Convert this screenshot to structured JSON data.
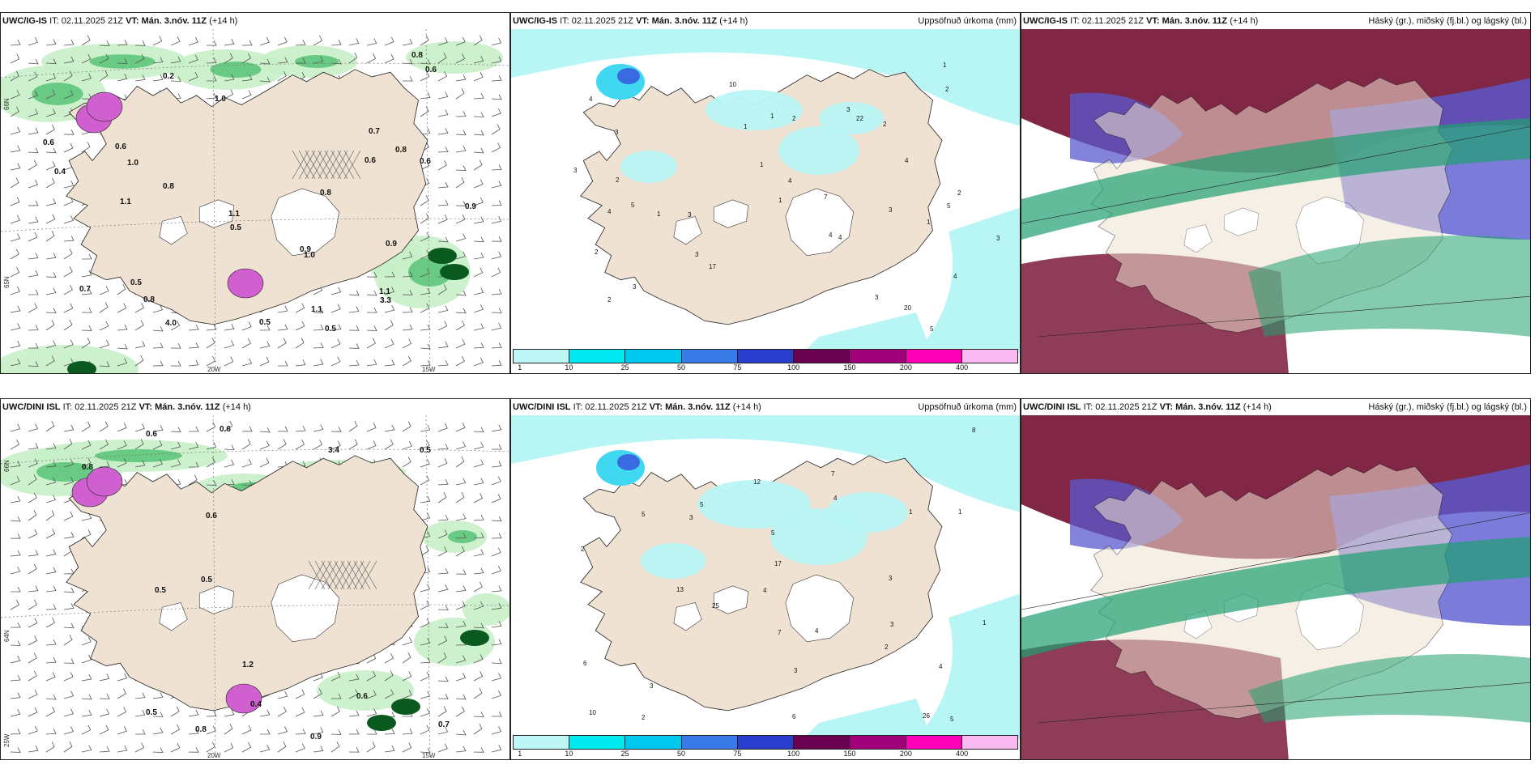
{
  "common": {
    "issue_time": "02.11.2025 21Z",
    "valid_label": "VT:",
    "valid_time": "Mán. 3.nóv. 11Z",
    "lead": "(+14 h)"
  },
  "rows": [
    {
      "model": "UWC/IG-IS"
    },
    {
      "model": "UWC/DINI ISL"
    }
  ],
  "it_label": "IT:",
  "precip_title": "Uppsöfnuð úrkoma (mm)",
  "cloud_title": "Háský (gr.), miðský (fj.bl.) og lágský (bl.)",
  "axes": {
    "lon_20": "20W",
    "lon_15": "15W",
    "lat_66": "66N",
    "lat_65": "65N",
    "lat_64": "64N",
    "lat_25": "25W"
  },
  "colorbar": {
    "ticks": [
      "1",
      "10",
      "25",
      "50",
      "75",
      "100",
      "150",
      "200",
      "400"
    ],
    "colors": [
      "#bff7f7",
      "#00e8f0",
      "#00c8ee",
      "#3a7ae8",
      "#2a3ccc",
      "#6a0050",
      "#a0007a",
      "#ff00b8",
      "#f8b8f0"
    ]
  },
  "colors": {
    "land": "#efe2d2",
    "precip_light": "#b8f6f6",
    "precip_mid": "#40d8f0",
    "precip_high": "#3a6ae0",
    "snow_green_light": "#c8f0c8",
    "snow_green": "#50c070",
    "snow_green_dark": "#0a5a20",
    "magenta": "#d060d0",
    "cloud_high": "#7a1a3a",
    "cloud_mid": "#5a5ad0",
    "cloud_low": "#20a070"
  },
  "wind_labels_top": [
    "0.5",
    "0.2",
    "0.5",
    "0.6",
    "0.8",
    "1.1",
    "0.9",
    "0.8",
    "0.5",
    "0.8",
    "0.7",
    "0.6",
    "1.1",
    "0.9",
    "0.6",
    "0.8",
    "0.4",
    "0.6",
    "0.9",
    "0.6",
    "1.1",
    "1.0",
    "4.0",
    "3.3",
    "0.8",
    "0.7",
    "1.1",
    "1.0",
    "0.5",
    "1.0"
  ],
  "wind_labels_bottom": [
    "0.8",
    "0.9",
    "0.5",
    "0.6",
    "0.6",
    "0.8",
    "0.5",
    "0.7",
    "0.6",
    "0.6",
    "0.5",
    "0.4",
    "0.5",
    "1.2",
    "3.4"
  ],
  "precip_labels_top": [
    "5",
    "5",
    "4",
    "4",
    "4",
    "3",
    "3",
    "3",
    "2",
    "1",
    "22",
    "20",
    "17",
    "10",
    "7",
    "2",
    "3",
    "4",
    "3",
    "2",
    "1",
    "2",
    "4",
    "3",
    "2",
    "2",
    "1",
    "1",
    "1",
    "2",
    "4",
    "4",
    "3",
    "3",
    "1",
    "1",
    "5",
    "3"
  ],
  "precip_labels_bottom": [
    "5",
    "5",
    "3",
    "6",
    "3",
    "4",
    "25",
    "17",
    "26",
    "13",
    "12",
    "5",
    "7",
    "8",
    "4",
    "2",
    "5",
    "3",
    "1",
    "1",
    "3",
    "4",
    "2",
    "2",
    "6",
    "10",
    "7",
    "4",
    "3",
    "1"
  ]
}
